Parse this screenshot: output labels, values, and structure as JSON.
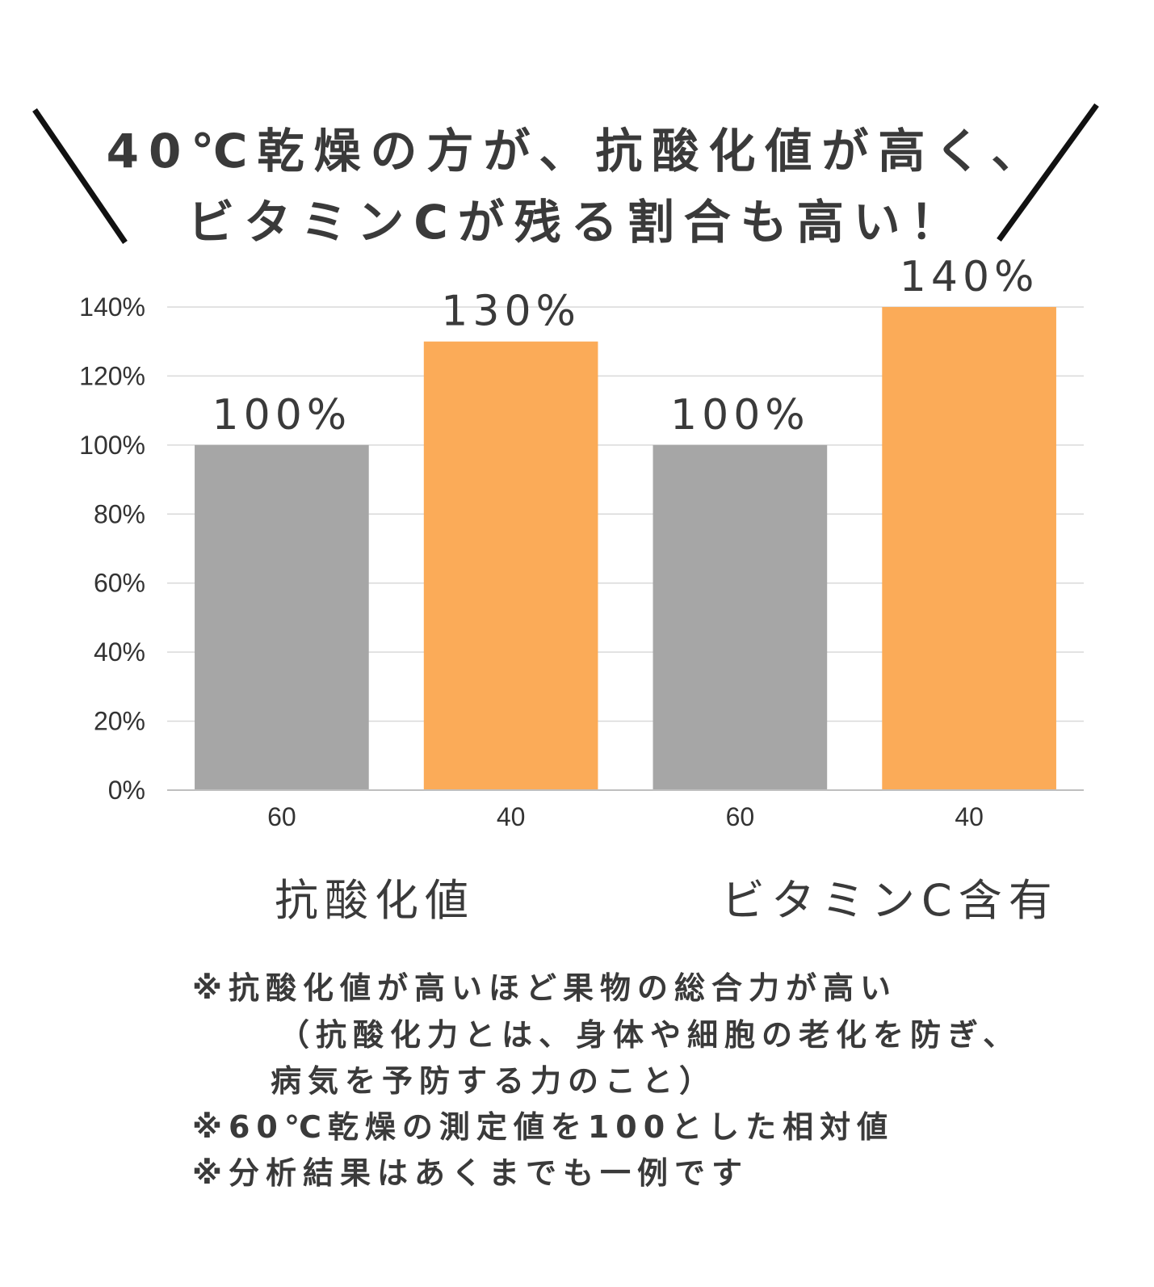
{
  "headline": {
    "line1": "40℃乾燥の方が、抗酸化値が高く、",
    "line2": "ビタミンCが残る割合も高い！"
  },
  "chart_data": {
    "type": "bar",
    "categories": [
      "60",
      "40",
      "60",
      "40"
    ],
    "values": [
      100,
      130,
      100,
      140
    ],
    "value_labels": [
      "100%",
      "130%",
      "100%",
      "140%"
    ],
    "groups": [
      "抗酸化値",
      "ビタミンC含有"
    ],
    "y_ticks": [
      "0%",
      "20%",
      "40%",
      "60%",
      "80%",
      "100%",
      "120%",
      "140%"
    ],
    "ylim": [
      0,
      140
    ],
    "grid": true,
    "colors": {
      "60": "#a6a6a6",
      "40": "#fbab58"
    }
  },
  "notes": [
    "※抗酸化値が高いほど果物の総合力が高い",
    "（抗酸化力とは、身体や細胞の老化を防ぎ、",
    "病気を予防する力のこと）",
    "※60℃乾燥の測定値を100とした相対値",
    "※分析結果はあくまでも一例です"
  ]
}
